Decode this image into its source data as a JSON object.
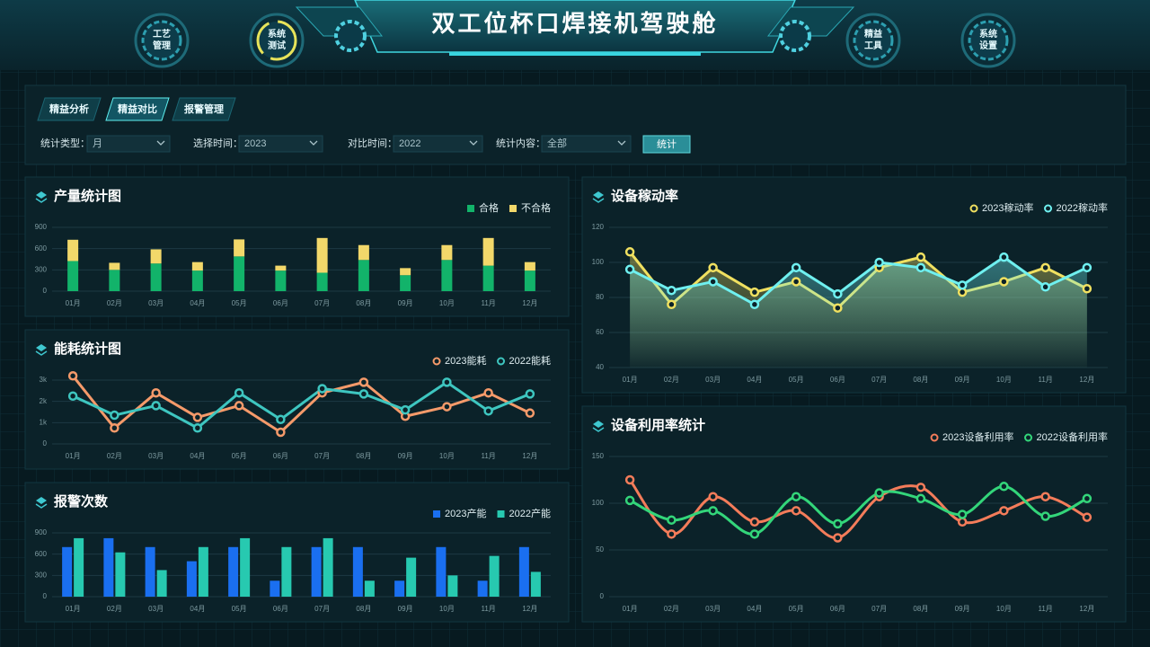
{
  "header": {
    "title": "双工位杯口焊接机驾驶舱",
    "nav": [
      "工艺管理",
      "系统测试",
      "精益工具",
      "系统设置"
    ]
  },
  "tabs": [
    "精益分析",
    "精益对比",
    "报警管理"
  ],
  "filters": [
    {
      "label": "统计类型：",
      "value": "月"
    },
    {
      "label": "选择时间：",
      "value": "2023"
    },
    {
      "label": "对比时间：",
      "value": "2022"
    },
    {
      "label": "统计内容：",
      "value": "全部"
    }
  ],
  "button": "统计",
  "chart_data": [
    {
      "type": "bar",
      "stacked": true,
      "title": "产量统计图",
      "categories": [
        "01月",
        "02月",
        "03月",
        "04月",
        "05月",
        "06月",
        "07月",
        "08月",
        "09月",
        "10月",
        "11月",
        "12月"
      ],
      "series": [
        {
          "name": "合格",
          "color": "#12b36a",
          "values": [
            425,
            300,
            390,
            290,
            490,
            290,
            260,
            440,
            225,
            440,
            360,
            290
          ]
        },
        {
          "name": "不合格",
          "color": "#f2d86a",
          "values": [
            300,
            100,
            200,
            120,
            240,
            70,
            490,
            210,
            100,
            210,
            390,
            120
          ]
        }
      ],
      "ylim": [
        0,
        900
      ],
      "yticks": [
        0,
        300,
        600,
        900
      ],
      "grid": true,
      "legend": "top-right"
    },
    {
      "type": "line",
      "title": "能耗统计图",
      "categories": [
        "01月",
        "02月",
        "03月",
        "04月",
        "05月",
        "06月",
        "07月",
        "08月",
        "09月",
        "10月",
        "11月",
        "12月"
      ],
      "series": [
        {
          "name": "2023能耗",
          "color": "#f59a6a",
          "values": [
            3200,
            750,
            2400,
            1250,
            1800,
            550,
            2400,
            2900,
            1300,
            1750,
            2400,
            1450
          ]
        },
        {
          "name": "2022能耗",
          "color": "#3ec6c0",
          "values": [
            2250,
            1350,
            1800,
            750,
            2400,
            1150,
            2600,
            2350,
            1600,
            2900,
            1550,
            2350
          ]
        }
      ],
      "ylim": [
        0,
        3000
      ],
      "yticks": [
        0,
        {
          "value": 1000,
          "label": "1k"
        },
        {
          "value": 2000,
          "label": "2k"
        },
        {
          "value": 3000,
          "label": "3k"
        }
      ],
      "grid": true,
      "legend": "top-right"
    },
    {
      "type": "bar",
      "stacked": false,
      "title": "报警次数",
      "categories": [
        "01月",
        "02月",
        "03月",
        "04月",
        "05月",
        "06月",
        "07月",
        "08月",
        "09月",
        "10月",
        "11月",
        "12月"
      ],
      "series": [
        {
          "name": "2023产能",
          "color": "#1a6ff0",
          "values": [
            700,
            825,
            700,
            500,
            700,
            225,
            700,
            700,
            225,
            700,
            225,
            700
          ]
        },
        {
          "name": "2022产能",
          "color": "#27c9b0",
          "values": [
            825,
            625,
            375,
            700,
            825,
            700,
            825,
            225,
            550,
            300,
            575,
            350
          ]
        }
      ],
      "ylim": [
        0,
        900
      ],
      "yticks": [
        0,
        300,
        600,
        900
      ],
      "grid": true,
      "legend": "top-right"
    },
    {
      "type": "area",
      "title": "设备稼动率",
      "categories": [
        "01月",
        "02月",
        "03月",
        "04月",
        "05月",
        "06月",
        "07月",
        "08月",
        "09月",
        "10月",
        "11月",
        "12月"
      ],
      "series": [
        {
          "name": "2023稼动率",
          "color": "#f0e060",
          "values": [
            106,
            76,
            97,
            83,
            89,
            74,
            97,
            103,
            83,
            89,
            97,
            85
          ]
        },
        {
          "name": "2022稼动率",
          "color": "#6ff0f0",
          "values": [
            96,
            84,
            89,
            76,
            97,
            82,
            100,
            97,
            87,
            103,
            86,
            97
          ]
        }
      ],
      "ylim": [
        40,
        120
      ],
      "yticks": [
        40,
        60,
        80,
        100,
        120
      ],
      "grid": true,
      "legend": "top-right"
    },
    {
      "type": "line",
      "smooth": true,
      "title": "设备利用率统计",
      "categories": [
        "01月",
        "02月",
        "03月",
        "04月",
        "05月",
        "06月",
        "07月",
        "08月",
        "09月",
        "10月",
        "11月",
        "12月"
      ],
      "series": [
        {
          "name": "2023设备利用率",
          "color": "#f47c5a",
          "values": [
            125,
            67,
            107,
            80,
            92,
            63,
            107,
            117,
            80,
            92,
            107,
            85
          ]
        },
        {
          "name": "2022设备利用率",
          "color": "#33d67a",
          "values": [
            103,
            82,
            92,
            67,
            107,
            78,
            111,
            105,
            88,
            118,
            86,
            105
          ]
        }
      ],
      "ylim": [
        0,
        150
      ],
      "yticks": [
        0,
        50,
        100,
        150
      ],
      "grid": true,
      "legend": "top-right"
    }
  ]
}
